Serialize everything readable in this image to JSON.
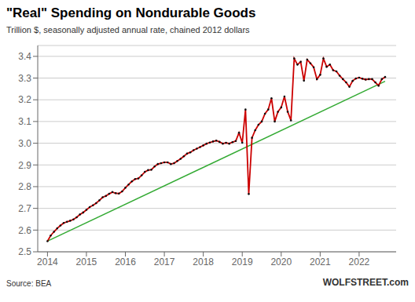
{
  "chart_data": {
    "type": "line",
    "title": "\"Real\" Spending on Nondurable Goods",
    "subtitle": "Trillion $, seasonally adjusted annual rate, chained 2012 dollars",
    "annotations": [
      "Source: BEA",
      "WOLFSTREET.com"
    ],
    "xlim": [
      2013.75,
      2022.95
    ],
    "xticks": [
      2014,
      2015,
      2016,
      2017,
      2018,
      2019,
      2020,
      2021,
      2022
    ],
    "ylim": [
      2.5,
      3.45
    ],
    "yticks": [
      2.5,
      2.6,
      2.7,
      2.8,
      2.9,
      {
        "value": 3.0,
        "label": "3.0"
      },
      3.1,
      3.2,
      3.3,
      3.4
    ],
    "grid": "y",
    "series": [
      {
        "type": "line",
        "color": "#33aa33",
        "x": [
          2014,
          2022.666666666667
        ],
        "values": [
          2.549,
          3.285
        ]
      },
      {
        "type": "line",
        "color": "#cc0000",
        "marker": "o",
        "x": [
          2014,
          2014.083333333333,
          2014.166666666667,
          2014.25,
          2014.333333333333,
          2014.416666666667,
          2014.5,
          2014.583333333333,
          2014.666666666667,
          2014.75,
          2014.833333333333,
          2014.916666666667,
          2015,
          2015.083333333333,
          2015.166666666667,
          2015.25,
          2015.333333333333,
          2015.416666666667,
          2015.5,
          2015.583333333333,
          2015.666666666667,
          2015.75,
          2015.833333333333,
          2015.916666666667,
          2016,
          2016.083333333333,
          2016.166666666667,
          2016.25,
          2016.333333333333,
          2016.416666666667,
          2016.5,
          2016.583333333333,
          2016.666666666667,
          2016.75,
          2016.833333333333,
          2016.916666666667,
          2017,
          2017.083333333333,
          2017.166666666667,
          2017.25,
          2017.333333333333,
          2017.416666666667,
          2017.5,
          2017.583333333333,
          2017.666666666667,
          2017.75,
          2017.833333333333,
          2017.916666666667,
          2018,
          2018.083333333333,
          2018.166666666667,
          2018.25,
          2018.333333333333,
          2018.416666666667,
          2018.5,
          2018.583333333333,
          2018.666666666667,
          2018.75,
          2018.833333333333,
          2018.916666666667,
          2019,
          2019.083333333333,
          2019.166666666667,
          2019.25,
          2019.333333333333,
          2019.416666666667,
          2019.5,
          2019.583333333333,
          2019.666666666667,
          2019.75,
          2019.833333333333,
          2019.916666666667,
          2020,
          2020.083333333333,
          2020.166666666667,
          2020.25,
          2020.333333333333,
          2020.416666666667,
          2020.5,
          2020.583333333333,
          2020.666666666667,
          2020.75,
          2020.833333333333,
          2020.916666666667,
          2021,
          2021.083333333333,
          2021.166666666667,
          2021.25,
          2021.333333333333,
          2021.416666666667,
          2021.5,
          2021.583333333333,
          2021.666666666667,
          2021.75,
          2021.833333333333,
          2021.916666666667,
          2022,
          2022.083333333333,
          2022.166666666667,
          2022.25,
          2022.333333333333,
          2022.416666666667,
          2022.5,
          2022.583333333333,
          2022.666666666667
        ],
        "values": [
          2.549,
          2.575,
          2.592,
          2.608,
          2.621,
          2.633,
          2.638,
          2.643,
          2.649,
          2.659,
          2.672,
          2.681,
          2.693,
          2.706,
          2.714,
          2.724,
          2.737,
          2.751,
          2.757,
          2.767,
          2.775,
          2.77,
          2.768,
          2.778,
          2.795,
          2.81,
          2.824,
          2.835,
          2.838,
          2.852,
          2.868,
          2.876,
          2.878,
          2.893,
          2.904,
          2.908,
          2.912,
          2.912,
          2.904,
          2.908,
          2.918,
          2.928,
          2.94,
          2.952,
          2.958,
          2.968,
          2.975,
          2.982,
          2.99,
          2.998,
          3.003,
          3.008,
          3.012,
          3.006,
          2.998,
          3.002,
          2.998,
          3.005,
          3.01,
          3.048,
          3.002,
          3.155,
          2.766,
          3.025,
          3.06,
          3.085,
          3.1,
          3.136,
          3.155,
          3.207,
          3.1,
          3.145,
          3.165,
          3.215,
          3.145,
          3.105,
          3.39,
          3.362,
          3.375,
          3.288,
          3.385,
          3.368,
          3.35,
          3.295,
          3.315,
          3.39,
          3.352,
          3.362,
          3.336,
          3.331,
          3.311,
          3.295,
          3.28,
          3.26,
          3.287,
          3.298,
          3.302,
          3.297,
          3.293,
          3.295,
          3.295,
          3.28,
          3.265,
          3.295,
          3.305
        ]
      }
    ]
  }
}
